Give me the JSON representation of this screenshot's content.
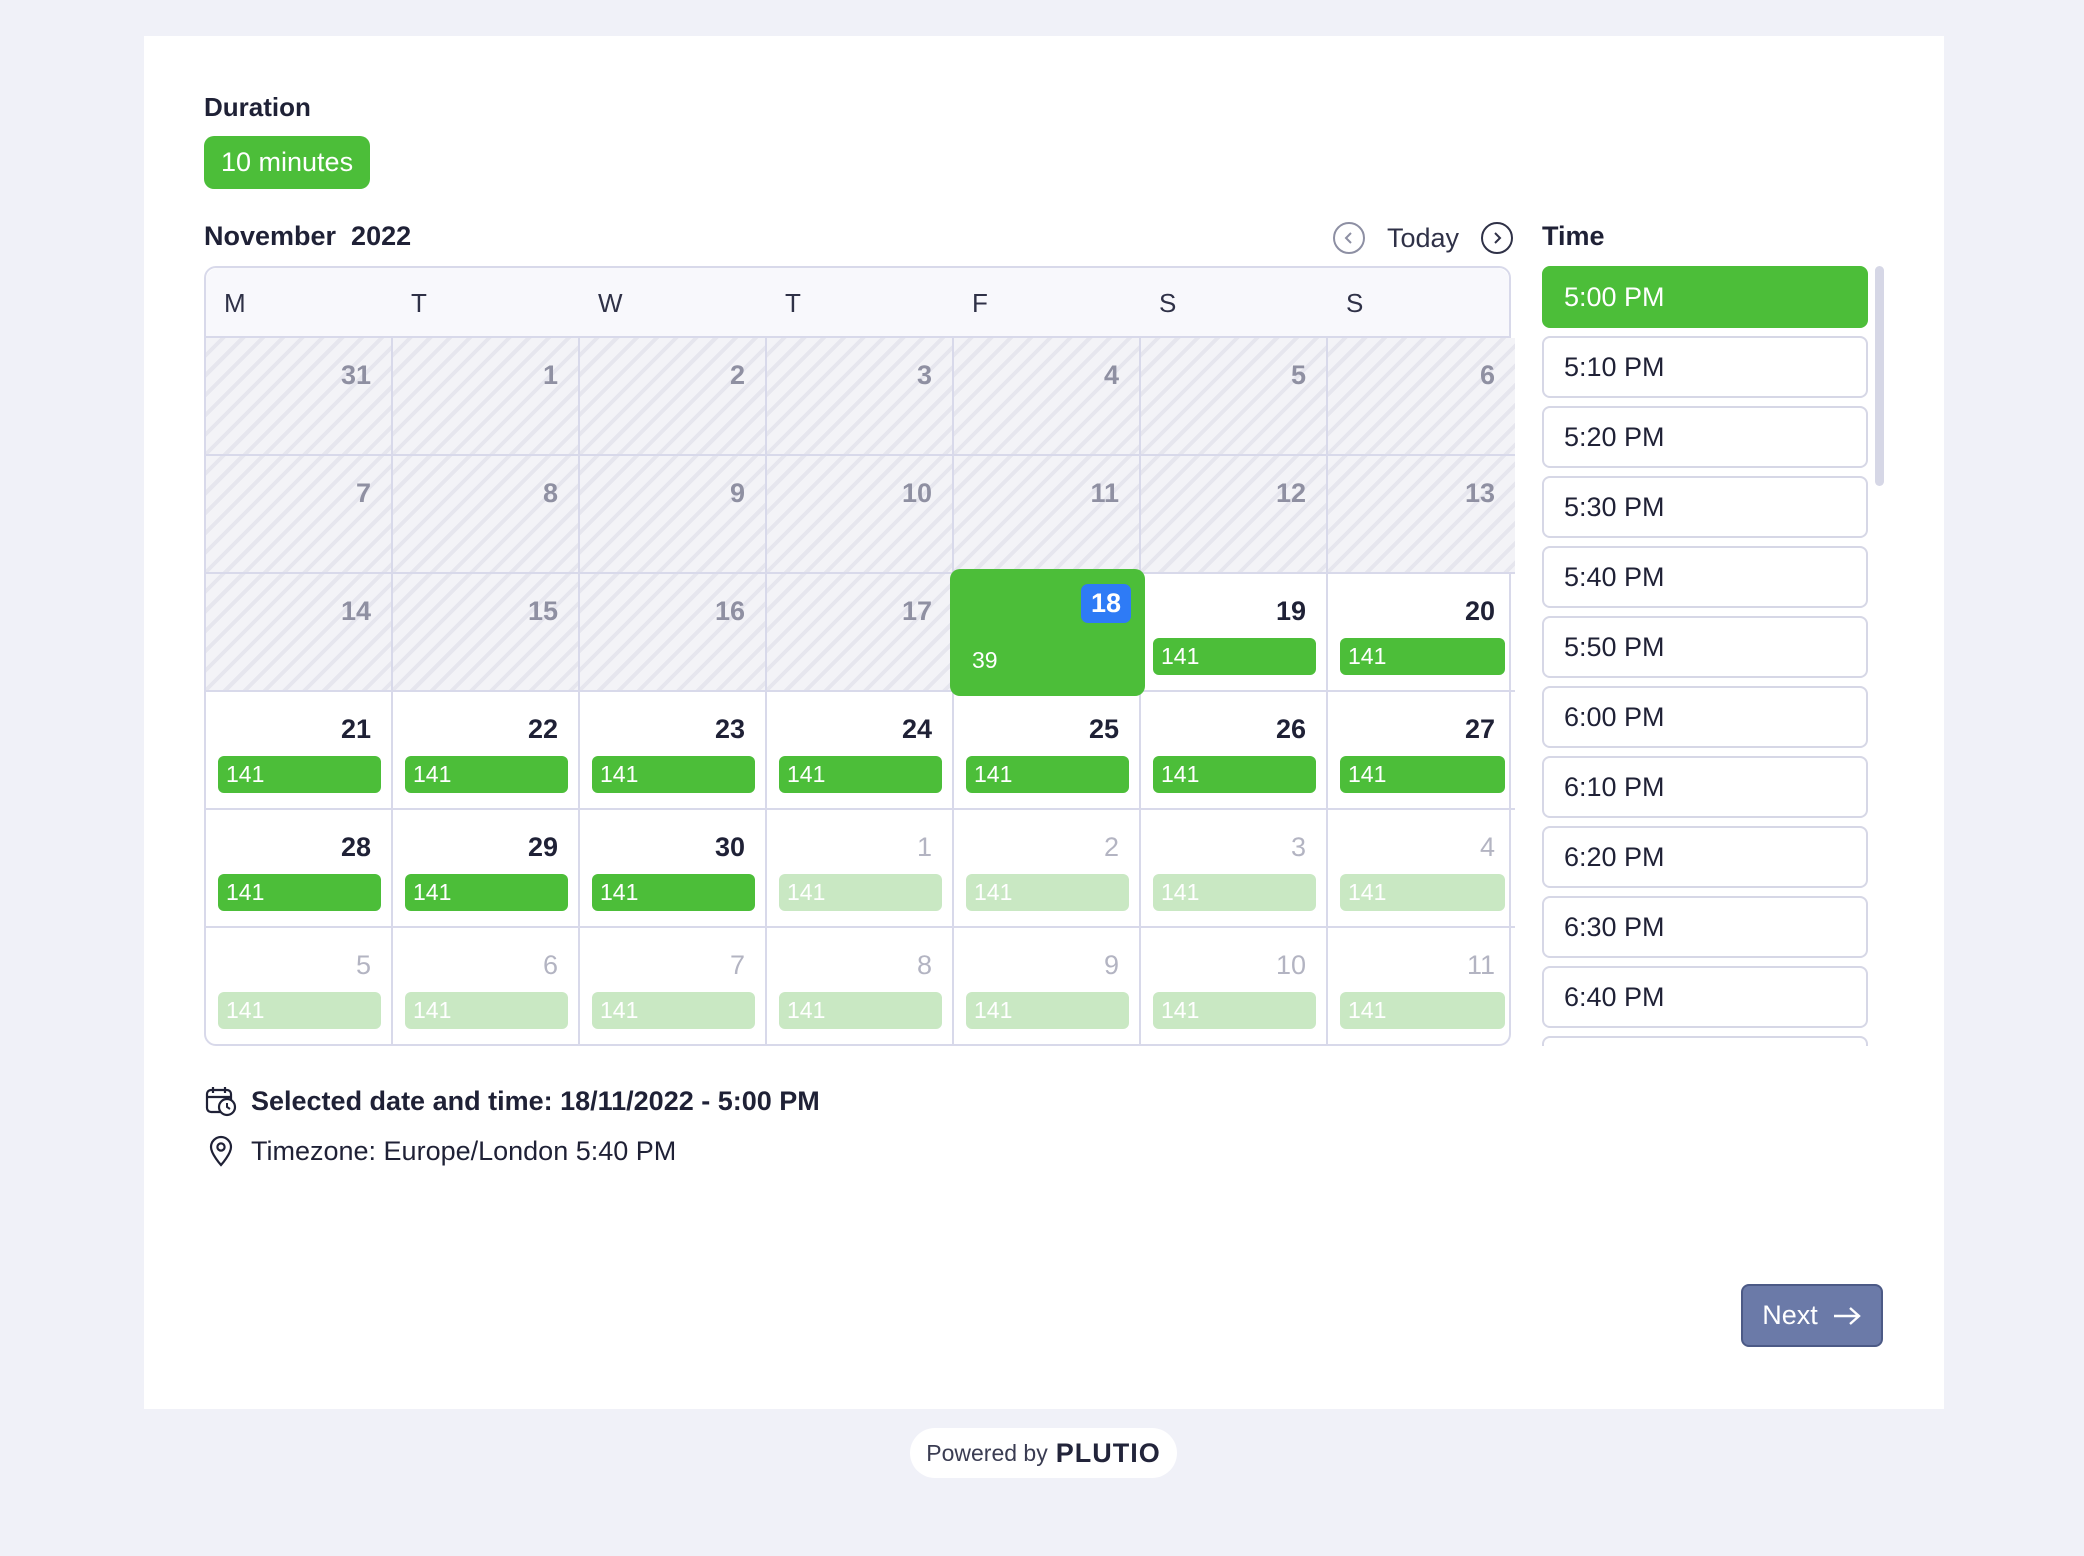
{
  "duration": {
    "label": "Duration",
    "options": [
      "10 minutes"
    ],
    "selected": "10 minutes"
  },
  "calendar": {
    "month_title": "November  2022",
    "today_label": "Today",
    "weekdays": [
      "M",
      "T",
      "W",
      "T",
      "F",
      "S",
      "S"
    ],
    "weeks": [
      [
        {
          "day": "31",
          "state": "past"
        },
        {
          "day": "1",
          "state": "past"
        },
        {
          "day": "2",
          "state": "past"
        },
        {
          "day": "3",
          "state": "past"
        },
        {
          "day": "4",
          "state": "past"
        },
        {
          "day": "5",
          "state": "past"
        },
        {
          "day": "6",
          "state": "past"
        }
      ],
      [
        {
          "day": "7",
          "state": "past"
        },
        {
          "day": "8",
          "state": "past"
        },
        {
          "day": "9",
          "state": "past"
        },
        {
          "day": "10",
          "state": "past"
        },
        {
          "day": "11",
          "state": "past"
        },
        {
          "day": "12",
          "state": "past"
        },
        {
          "day": "13",
          "state": "past"
        }
      ],
      [
        {
          "day": "14",
          "state": "past"
        },
        {
          "day": "15",
          "state": "past"
        },
        {
          "day": "16",
          "state": "past"
        },
        {
          "day": "17",
          "state": "past"
        },
        {
          "day": "18",
          "state": "selected",
          "slots": "39"
        },
        {
          "day": "19",
          "state": "available",
          "slots": "141"
        },
        {
          "day": "20",
          "state": "available",
          "slots": "141"
        }
      ],
      [
        {
          "day": "21",
          "state": "available",
          "slots": "141"
        },
        {
          "day": "22",
          "state": "available",
          "slots": "141"
        },
        {
          "day": "23",
          "state": "available",
          "slots": "141"
        },
        {
          "day": "24",
          "state": "available",
          "slots": "141"
        },
        {
          "day": "25",
          "state": "available",
          "slots": "141"
        },
        {
          "day": "26",
          "state": "available",
          "slots": "141"
        },
        {
          "day": "27",
          "state": "available",
          "slots": "141"
        }
      ],
      [
        {
          "day": "28",
          "state": "available",
          "slots": "141"
        },
        {
          "day": "29",
          "state": "available",
          "slots": "141"
        },
        {
          "day": "30",
          "state": "available",
          "slots": "141"
        },
        {
          "day": "1",
          "state": "other",
          "slots": "141"
        },
        {
          "day": "2",
          "state": "other",
          "slots": "141"
        },
        {
          "day": "3",
          "state": "other",
          "slots": "141"
        },
        {
          "day": "4",
          "state": "other",
          "slots": "141"
        }
      ],
      [
        {
          "day": "5",
          "state": "other",
          "slots": "141"
        },
        {
          "day": "6",
          "state": "other",
          "slots": "141"
        },
        {
          "day": "7",
          "state": "other",
          "slots": "141"
        },
        {
          "day": "8",
          "state": "other",
          "slots": "141"
        },
        {
          "day": "9",
          "state": "other",
          "slots": "141"
        },
        {
          "day": "10",
          "state": "other",
          "slots": "141"
        },
        {
          "day": "11",
          "state": "other",
          "slots": "141"
        }
      ]
    ]
  },
  "time": {
    "label": "Time",
    "slots": [
      "5:00 PM",
      "5:10 PM",
      "5:20 PM",
      "5:30 PM",
      "5:40 PM",
      "5:50 PM",
      "6:00 PM",
      "6:10 PM",
      "6:20 PM",
      "6:30 PM",
      "6:40 PM",
      ""
    ],
    "selected": "5:00 PM"
  },
  "info": {
    "selected_text": "Selected date and time: 18/11/2022 - 5:00 PM",
    "timezone_text": "Timezone: Europe/London 5:40 PM"
  },
  "next_label": "Next",
  "footer": {
    "powered_by": "Powered by",
    "brand": "PLUTIO"
  },
  "colors": {
    "accent_green": "#4cbe39",
    "selected_day_badge": "#2e7bf6",
    "next_button": "#6b7aa8"
  }
}
